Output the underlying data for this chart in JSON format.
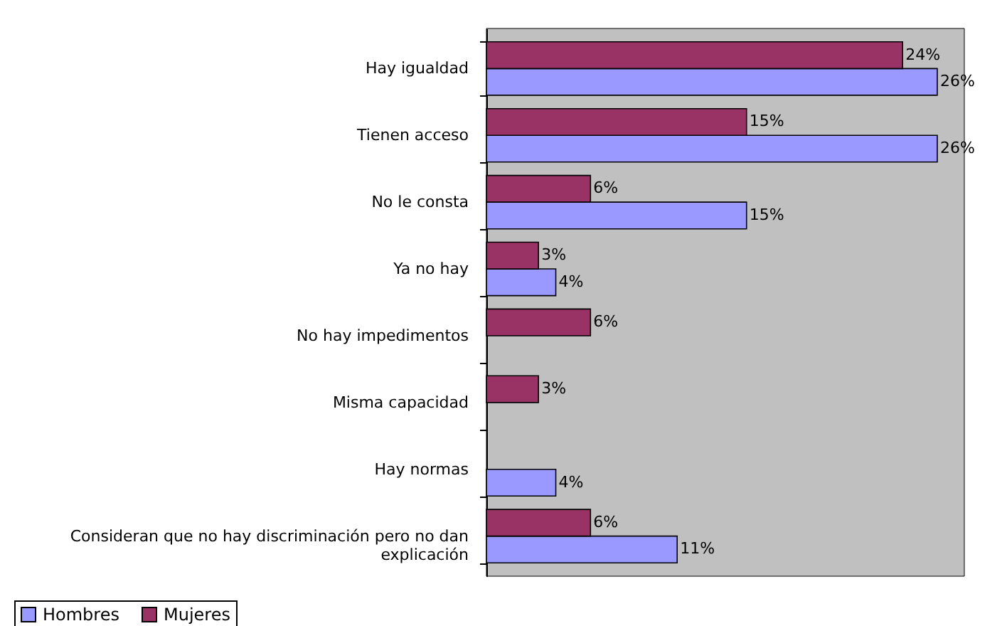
{
  "chart_data": {
    "type": "bar",
    "orientation": "horizontal",
    "categories": [
      "Hay igualdad",
      "Tienen acceso",
      "No le consta",
      "Ya no hay",
      "No hay impedimentos",
      "Misma capacidad",
      "Hay normas",
      "Consideran que no hay discriminación pero no dan explicación"
    ],
    "series": [
      {
        "name": "Hombres",
        "color": "#9999ff",
        "values": [
          26,
          26,
          15,
          4,
          null,
          null,
          4,
          11
        ],
        "value_labels": [
          "26%",
          "26%",
          "15%",
          "4%",
          null,
          null,
          "4%",
          "11%"
        ]
      },
      {
        "name": "Mujeres",
        "color": "#993366",
        "values": [
          24,
          15,
          6,
          3,
          6,
          3,
          null,
          6
        ],
        "value_labels": [
          "24%",
          "15%",
          "6%",
          "3%",
          "6%",
          "3%",
          null,
          "6%"
        ]
      }
    ],
    "tick_labels": "y",
    "legend": "bottom"
  }
}
